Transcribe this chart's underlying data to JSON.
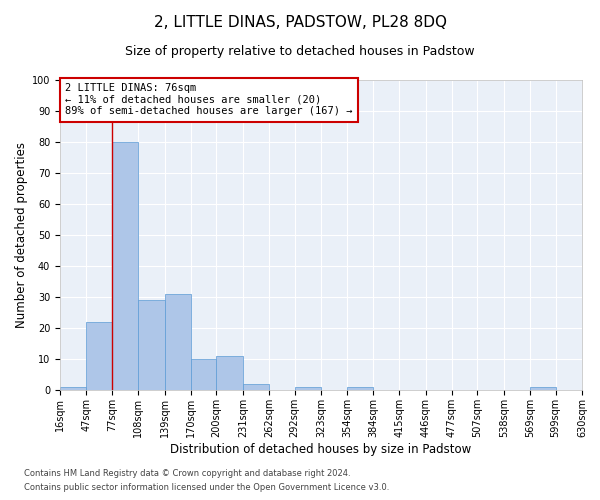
{
  "title": "2, LITTLE DINAS, PADSTOW, PL28 8DQ",
  "subtitle": "Size of property relative to detached houses in Padstow",
  "xlabel": "Distribution of detached houses by size in Padstow",
  "ylabel": "Number of detached properties",
  "footnote1": "Contains HM Land Registry data © Crown copyright and database right 2024.",
  "footnote2": "Contains public sector information licensed under the Open Government Licence v3.0.",
  "bar_values": [
    1,
    22,
    80,
    29,
    31,
    10,
    11,
    2,
    0,
    1,
    0,
    1,
    0,
    0,
    0,
    0,
    0,
    0,
    1,
    0
  ],
  "bin_edges": [
    16,
    47,
    77,
    108,
    139,
    170,
    200,
    231,
    262,
    292,
    323,
    354,
    384,
    415,
    446,
    477,
    507,
    538,
    569,
    599,
    630
  ],
  "tick_labels": [
    "16sqm",
    "47sqm",
    "77sqm",
    "108sqm",
    "139sqm",
    "170sqm",
    "200sqm",
    "231sqm",
    "262sqm",
    "292sqm",
    "323sqm",
    "354sqm",
    "384sqm",
    "415sqm",
    "446sqm",
    "477sqm",
    "507sqm",
    "538sqm",
    "569sqm",
    "599sqm",
    "630sqm"
  ],
  "bar_color": "#aec6e8",
  "bar_edge_color": "#5b9bd5",
  "vline_x": 77,
  "vline_color": "#cc0000",
  "ylim": [
    0,
    100
  ],
  "yticks": [
    0,
    10,
    20,
    30,
    40,
    50,
    60,
    70,
    80,
    90,
    100
  ],
  "annotation_text": "2 LITTLE DINAS: 76sqm\n← 11% of detached houses are smaller (20)\n89% of semi-detached houses are larger (167) →",
  "annotation_box_color": "#cc0000",
  "bg_color": "#eaf0f8",
  "title_fontsize": 11,
  "subtitle_fontsize": 9,
  "axis_label_fontsize": 8.5,
  "tick_fontsize": 7,
  "footnote_fontsize": 6,
  "annot_fontsize": 7.5
}
